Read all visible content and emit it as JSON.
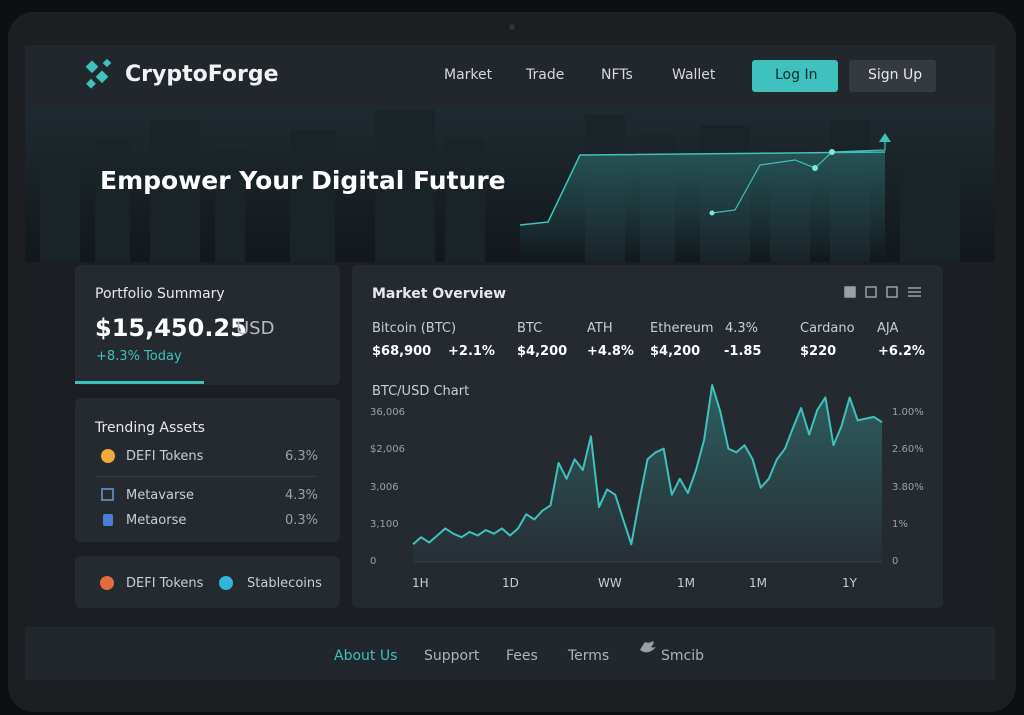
{
  "nav": {
    "brand": "CryptoForge",
    "links": [
      "Market",
      "Trade",
      "NFTs",
      "Wallet"
    ],
    "login": "Log In",
    "signup": "Sign Up"
  },
  "hero": {
    "title": "Empower Your Digital Future"
  },
  "portfolio": {
    "title": "Portfolio Summary",
    "amount": "$15,450.25",
    "currency": "USD",
    "change": "+8.3% Today"
  },
  "trending": {
    "title": "Trending Assets",
    "items": [
      {
        "name": "DEFI Tokens",
        "value": "6.3%"
      },
      {
        "name": "Metavarse",
        "value": "4.3%"
      },
      {
        "name": "Metaorse",
        "value": "0.3%"
      }
    ]
  },
  "categories": [
    "DEFI Tokens",
    "Stablecoins"
  ],
  "market": {
    "title": "Market Overview",
    "labels": [
      "Bitcoin (BTC)",
      "BTC",
      "ATH",
      "Ethereum",
      "4.3%",
      "Cardano",
      "AJA"
    ],
    "prices": [
      "$68,900",
      "+2.1%",
      "$4,200",
      "+4.8%",
      "$4,200",
      "-1.85",
      "$220",
      "+6.2%"
    ],
    "chart": {
      "type": "line",
      "title": "BTC/USD Chart",
      "y_labels": [
        "36,006",
        "$2,006",
        "3,006",
        "3,100",
        "0"
      ],
      "y2_labels": [
        "1.00%",
        "2.60%",
        "3.80%",
        "1%",
        "0"
      ],
      "categories": [
        "1H",
        "1D",
        "WW",
        "1M",
        "1M",
        "1Y"
      ],
      "values": [
        10,
        14,
        11,
        15,
        19,
        16,
        14,
        17,
        15,
        18,
        16,
        19,
        15,
        19,
        27,
        24,
        29,
        32,
        56,
        47,
        58,
        52,
        71,
        31,
        41,
        38,
        24,
        10,
        35,
        58,
        62,
        64,
        38,
        47,
        39,
        52,
        69,
        100,
        85,
        64,
        62,
        66,
        58,
        42,
        47,
        58,
        64,
        76,
        87,
        72,
        86,
        93,
        66,
        77,
        93,
        80,
        81,
        82,
        79
      ],
      "ylim": [
        0,
        100
      ],
      "color": "#3fc1bd"
    }
  },
  "footer": {
    "links": [
      "About Us",
      "Support",
      "Fees",
      "Terms",
      "Smcib"
    ]
  }
}
